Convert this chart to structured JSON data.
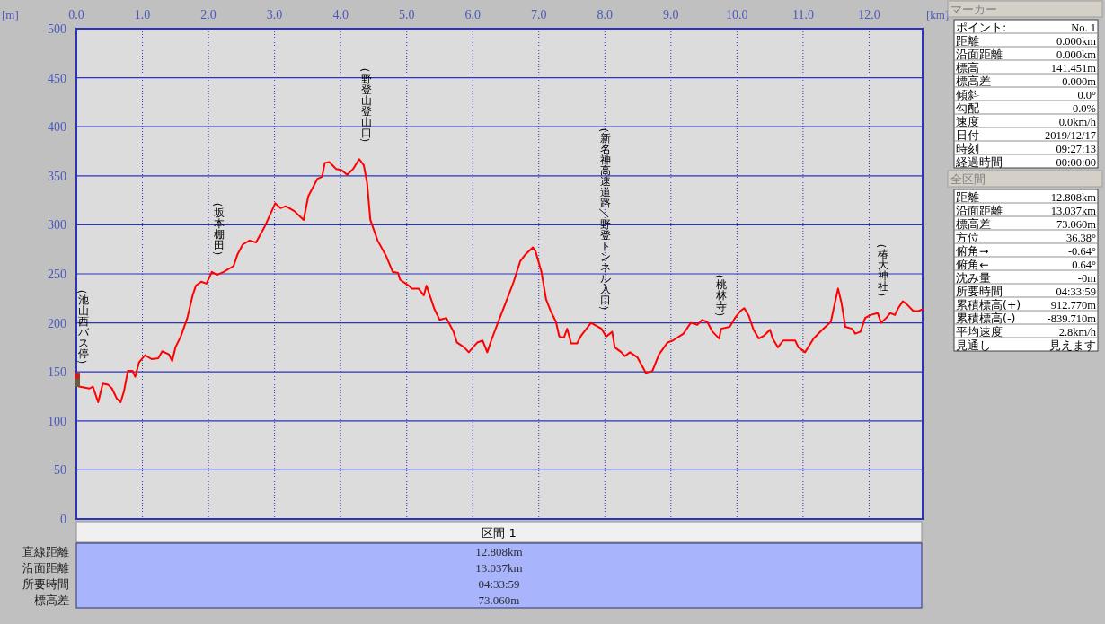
{
  "chart_data": [
    {
      "type": "line",
      "xlabel": "[km]",
      "ylabel": "[m]",
      "xlim": [
        0,
        12.81
      ],
      "xticks": [
        {
          "value": 0,
          "label": "0.0"
        },
        {
          "value": 1,
          "label": "1.0"
        },
        {
          "value": 2,
          "label": "2.0"
        },
        {
          "value": 3,
          "label": "3.0"
        },
        {
          "value": 4,
          "label": "4.0"
        },
        {
          "value": 5,
          "label": "5.0"
        },
        {
          "value": 6,
          "label": "6.0"
        },
        {
          "value": 7,
          "label": "7.0"
        },
        {
          "value": 8,
          "label": "8.0"
        },
        {
          "value": 9,
          "label": "9.0"
        },
        {
          "value": 10,
          "label": "10.0"
        },
        {
          "value": 11,
          "label": "11.0"
        },
        {
          "value": 12,
          "label": "12.0"
        }
      ],
      "ylim": [
        0,
        500
      ],
      "yticks": [
        0,
        50,
        100,
        150,
        200,
        250,
        300,
        350,
        400,
        450,
        500
      ],
      "grid": true,
      "x": [
        0,
        0.04,
        0.2,
        0.25,
        0.33,
        0.4,
        0.48,
        0.54,
        0.61,
        0.67,
        0.72,
        0.78,
        0.85,
        0.89,
        0.95,
        1.04,
        1.14,
        1.24,
        1.3,
        1.4,
        1.45,
        1.5,
        1.58,
        1.68,
        1.76,
        1.81,
        1.89,
        1.97,
        2.05,
        2.13,
        2.23,
        2.38,
        2.44,
        2.52,
        2.62,
        2.72,
        2.85,
        3.01,
        3.09,
        3.17,
        3.3,
        3.44,
        3.51,
        3.65,
        3.72,
        3.76,
        3.83,
        3.93,
        4.01,
        4.1,
        4.19,
        4.28,
        4.35,
        4.4,
        4.45,
        4.56,
        4.69,
        4.79,
        4.87,
        4.9,
        5.03,
        5.08,
        5.18,
        5.26,
        5.3,
        5.42,
        5.5,
        5.6,
        5.71,
        5.76,
        5.87,
        5.94,
        6.07,
        6.15,
        6.22,
        6.28,
        6.38,
        6.49,
        6.62,
        6.72,
        6.8,
        6.91,
        6.95,
        7.04,
        7.11,
        7.18,
        7.26,
        7.31,
        7.38,
        7.43,
        7.49,
        7.58,
        7.64,
        7.79,
        7.95,
        8.02,
        8.11,
        8.15,
        8.25,
        8.3,
        8.38,
        8.49,
        8.62,
        8.72,
        8.82,
        8.95,
        9.03,
        9.19,
        9.3,
        9.4,
        9.47,
        9.55,
        9.63,
        9.73,
        9.76,
        9.89,
        9.97,
        10.05,
        10.11,
        10.18,
        10.25,
        10.33,
        10.41,
        10.5,
        10.54,
        10.62,
        10.7,
        10.88,
        10.93,
        11.03,
        11.16,
        11.29,
        11.42,
        11.53,
        11.58,
        11.64,
        11.74,
        11.79,
        11.87,
        11.94,
        12.02,
        12.13,
        12.18,
        12.26,
        12.32,
        12.39,
        12.44,
        12.51,
        12.57,
        12.67,
        12.75,
        12.808
      ],
      "series": [
        {
          "color": "#ff0000",
          "values": [
            141,
            135,
            133,
            135,
            119,
            138,
            137,
            133,
            123,
            119,
            130,
            151,
            151,
            145,
            160,
            167,
            163,
            164,
            171,
            168,
            161,
            175,
            186,
            205,
            228,
            238,
            242,
            240,
            252,
            249,
            252,
            258,
            270,
            280,
            284,
            282,
            298,
            322,
            317,
            319,
            314,
            305,
            329,
            347,
            349,
            363,
            364,
            357,
            356,
            351,
            357,
            367,
            361,
            343,
            305,
            284,
            268,
            252,
            251,
            244,
            238,
            235,
            235,
            228,
            238,
            214,
            203,
            205,
            191,
            180,
            175,
            170,
            180,
            182,
            170,
            182,
            200,
            219,
            242,
            263,
            270,
            277,
            273,
            252,
            224,
            212,
            201,
            186,
            185,
            194,
            179,
            179,
            187,
            200,
            194,
            186,
            191,
            175,
            170,
            166,
            170,
            165,
            149,
            151,
            168,
            180,
            182,
            189,
            200,
            198,
            203,
            201,
            191,
            184,
            194,
            196,
            205,
            212,
            215,
            207,
            193,
            184,
            187,
            193,
            184,
            175,
            182,
            182,
            175,
            170,
            184,
            193,
            201,
            235,
            221,
            196,
            194,
            189,
            191,
            205,
            208,
            210,
            200,
            205,
            210,
            208,
            215,
            222,
            219,
            212,
            212,
            214
          ]
        }
      ],
      "annotations": [
        {
          "text": "（池山西バス停）",
          "x": 0,
          "y": 141
        },
        {
          "text": "（坂本棚田）",
          "x": 2.05,
          "y": 252
        },
        {
          "text": "（野登山登山口）",
          "x": 4.28,
          "y": 367
        },
        {
          "text": "（新名神高速道路／野登トンネル入口）",
          "x": 7.9,
          "y": 196
        },
        {
          "text": "（桃林寺）",
          "x": 9.65,
          "y": 190
        },
        {
          "text": "（椿大神社）",
          "x": 12.1,
          "y": 210
        }
      ]
    },
    {
      "type": "other",
      "title": "マーカー",
      "annotations": [
        "ポイント:",
        "No. 1",
        "距離",
        "0.000km",
        "沿面距離",
        "0.000km",
        "標高",
        "141.451m",
        "標高差",
        "0.000m",
        "傾斜",
        "0.0°",
        "勾配",
        "0.0%",
        "速度",
        "0.0km/h",
        "日付",
        "2019/12/17",
        "時刻",
        "09:27:13",
        "経過時間",
        "00:00:00"
      ]
    },
    {
      "type": "other",
      "title": "全区間",
      "annotations": [
        "距離",
        "12.808km",
        "沿面距離",
        "13.037km",
        "標高差",
        "73.060m",
        "方位",
        "36.38°",
        "俯角→",
        "-0.64°",
        "俯角←",
        "0.64°",
        "沈み量",
        "-0m",
        "所要時間",
        "04:33:59",
        "累積標高(+)",
        "912.770m",
        "累積標高(-)",
        "-839.710m",
        "平均速度",
        "2.8km/h",
        "見通し",
        "見えます"
      ]
    },
    {
      "type": "other",
      "title": "区間 1",
      "annotations": [
        "直線距離",
        "12.808km",
        "沿面距離",
        "13.037km",
        "所要時間",
        "04:33:59",
        "標高差",
        "73.060m"
      ]
    }
  ]
}
